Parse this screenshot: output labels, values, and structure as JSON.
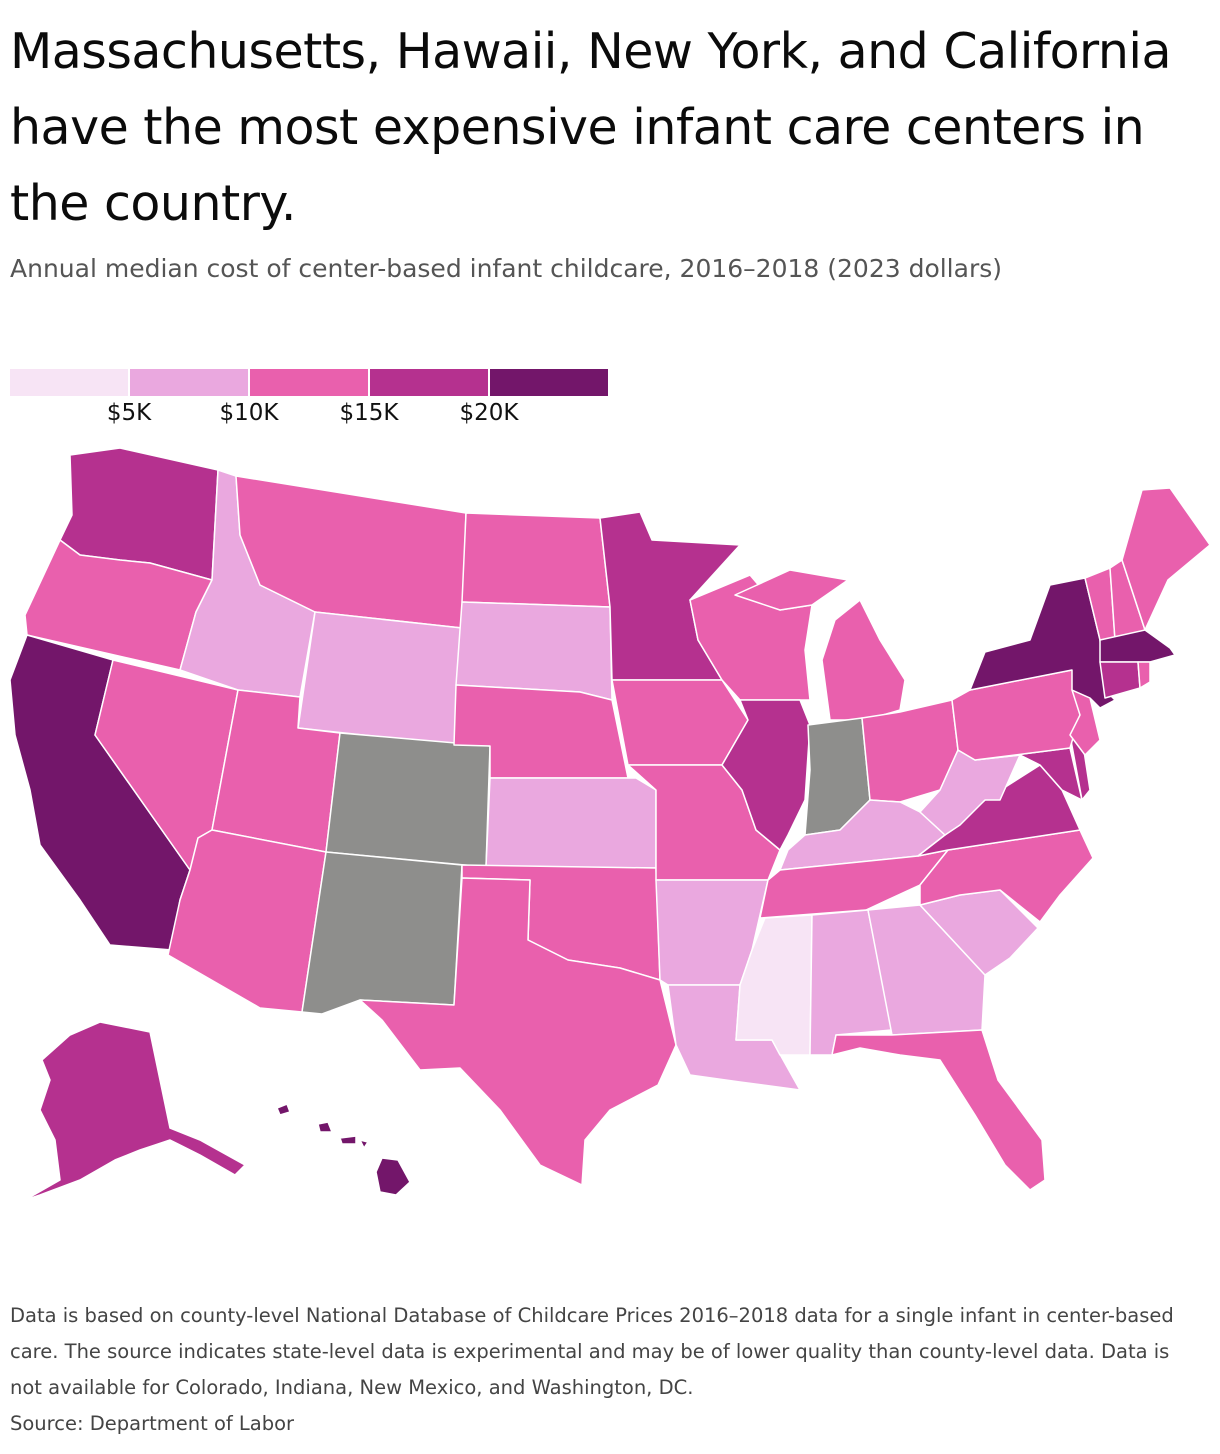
{
  "title": "Massachusetts, Hawaii, New York, and California have the most expensive infant care centers in the country.",
  "subtitle": "Annual median cost of center-based infant childcare, 2016–2018 (2023 dollars)",
  "legend": {
    "colors": [
      "#f7e4f5",
      "#eaa8df",
      "#e960ad",
      "#b5318f",
      "#73166a"
    ],
    "ticks": [
      "$5K",
      "$10K",
      "$15K",
      "$20K"
    ]
  },
  "no_data_color": "#8e8e8c",
  "chart_data": {
    "type": "choropleth",
    "value_bins": [
      "under $5K",
      "$5K–$10K",
      "$10K–$15K",
      "$15K–$20K",
      "$20K and over"
    ],
    "states": [
      {
        "name": "Washington",
        "bin": 3
      },
      {
        "name": "Oregon",
        "bin": 2
      },
      {
        "name": "California",
        "bin": 4
      },
      {
        "name": "Nevada",
        "bin": 2
      },
      {
        "name": "Idaho",
        "bin": 1
      },
      {
        "name": "Montana",
        "bin": 2
      },
      {
        "name": "Wyoming",
        "bin": 1
      },
      {
        "name": "Utah",
        "bin": 2
      },
      {
        "name": "Arizona",
        "bin": 2
      },
      {
        "name": "Colorado",
        "bin": null
      },
      {
        "name": "New Mexico",
        "bin": null
      },
      {
        "name": "North Dakota",
        "bin": 2
      },
      {
        "name": "South Dakota",
        "bin": 1
      },
      {
        "name": "Nebraska",
        "bin": 2
      },
      {
        "name": "Kansas",
        "bin": 1
      },
      {
        "name": "Oklahoma",
        "bin": 2
      },
      {
        "name": "Texas",
        "bin": 2
      },
      {
        "name": "Minnesota",
        "bin": 3
      },
      {
        "name": "Iowa",
        "bin": 2
      },
      {
        "name": "Missouri",
        "bin": 2
      },
      {
        "name": "Arkansas",
        "bin": 1
      },
      {
        "name": "Louisiana",
        "bin": 1
      },
      {
        "name": "Wisconsin",
        "bin": 2
      },
      {
        "name": "Illinois",
        "bin": 3
      },
      {
        "name": "Michigan",
        "bin": 2
      },
      {
        "name": "Indiana",
        "bin": null
      },
      {
        "name": "Ohio",
        "bin": 2
      },
      {
        "name": "Kentucky",
        "bin": 1
      },
      {
        "name": "Tennessee",
        "bin": 2
      },
      {
        "name": "Mississippi",
        "bin": 0
      },
      {
        "name": "Alabama",
        "bin": 1
      },
      {
        "name": "Georgia",
        "bin": 1
      },
      {
        "name": "Florida",
        "bin": 2
      },
      {
        "name": "South Carolina",
        "bin": 1
      },
      {
        "name": "North Carolina",
        "bin": 2
      },
      {
        "name": "Virginia",
        "bin": 3
      },
      {
        "name": "West Virginia",
        "bin": 1
      },
      {
        "name": "Pennsylvania",
        "bin": 2
      },
      {
        "name": "New York",
        "bin": 4
      },
      {
        "name": "Vermont",
        "bin": 2
      },
      {
        "name": "New Hampshire",
        "bin": 2
      },
      {
        "name": "Maine",
        "bin": 2
      },
      {
        "name": "Massachusetts",
        "bin": 4
      },
      {
        "name": "Rhode Island",
        "bin": 2
      },
      {
        "name": "Connecticut",
        "bin": 3
      },
      {
        "name": "New Jersey",
        "bin": 2
      },
      {
        "name": "Delaware",
        "bin": 3
      },
      {
        "name": "Maryland",
        "bin": 3
      },
      {
        "name": "Alaska",
        "bin": 3
      },
      {
        "name": "Hawaii",
        "bin": 4
      }
    ]
  },
  "footer": {
    "note": "Data is based on county-level National Database of Childcare Prices 2016–2018 data for a single infant in center-based care. The source indicates state-level data is experimental and may be of lower quality than county-level data. Data is not available for Colorado, Indiana, New Mexico, and Washington, DC.",
    "source": "Source: Department of Labor"
  }
}
